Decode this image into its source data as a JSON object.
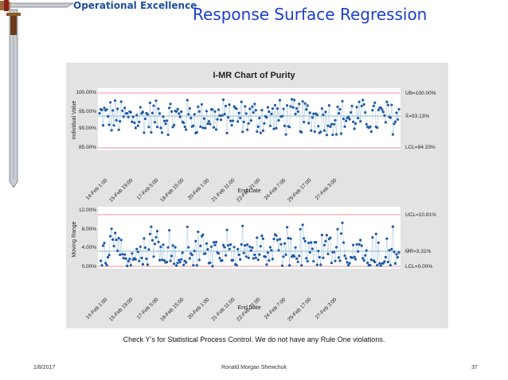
{
  "slide": {
    "brand": "Operational Excellence",
    "title": "Response Surface Regression",
    "caption": "Check Y’s for Statistical Process Control.  We do not have any Rule One violations.",
    "footer_date": "1/8/2017",
    "footer_author": "Ronald Morgan Shewchuk",
    "footer_page": "37"
  },
  "colors": {
    "title": "#1a3fd0",
    "brand": "#1f4e9c",
    "points": "#1f5aa6",
    "limit_line": "#e07070",
    "center_line": "#5aa0b8",
    "panel": "#e3e3e3"
  },
  "chart_data": {
    "type": "scatter",
    "title": "I-MR Chart of Purity",
    "xlabel": "End Date",
    "x_ticks": [
      "14-Feb 1:00",
      "15-Feb 19:00",
      "17-Feb 5:00",
      "18-Feb 15:00",
      "20-Feb 1:00",
      "21-Feb 11:00",
      "22-Feb 21:00",
      "24-Feb 7:00",
      "25-Feb 17:00",
      "27-Feb 3:00"
    ],
    "individual": {
      "ylabel": "Individual Value",
      "ylim": [
        84.0,
        100.0
      ],
      "y_ticks": [
        "85.00%",
        "90.00%",
        "95.00%",
        "100.00%"
      ],
      "y_tick_values": [
        85,
        90,
        95,
        100
      ],
      "limits": {
        "ucl": 100.0,
        "center": 93.13,
        "lcl": 84.33
      },
      "limit_labels": {
        "ucl": "UB=100.00%",
        "center": "X̄=93.13%",
        "lcl": "LCL=84.33%"
      }
    },
    "moving_range": {
      "ylabel": "Moving Range",
      "ylim": [
        0.0,
        12.0
      ],
      "y_ticks": [
        "0.00%",
        "4.00%",
        "8.00%",
        "12.00%"
      ],
      "y_tick_values": [
        0,
        4,
        8,
        12
      ],
      "limits": {
        "ucl": 10.81,
        "center": 3.31,
        "lcl": 0.0
      },
      "limit_labels": {
        "ucl": "UCL=10.81%",
        "center": "M̄R=3.31%",
        "lcl": "LCL=0.00%"
      }
    },
    "n_points": 250,
    "values_approx": "approx. 250 observations ranging from about 88% to 98.5% purity; moving ranges mostly 0–9%, none beyond the control limits"
  }
}
